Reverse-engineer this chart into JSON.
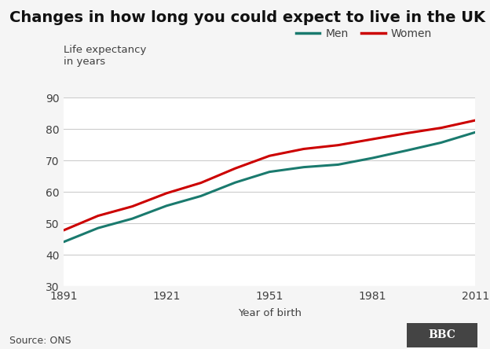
{
  "title": "Changes in how long you could expect to live in the UK",
  "ylabel_line1": "Life expectancy",
  "ylabel_line2": "in years",
  "xlabel": "Year of birth",
  "source": "Source: ONS",
  "bbc_text": "BBC",
  "xlim": [
    1891,
    2011
  ],
  "ylim": [
    30,
    90
  ],
  "yticks": [
    30,
    40,
    50,
    60,
    70,
    80,
    90
  ],
  "xticks": [
    1891,
    1921,
    1951,
    1981,
    2011
  ],
  "men_color": "#1a7a6e",
  "women_color": "#cc0000",
  "background_color": "#f5f5f5",
  "men_x": [
    1891,
    1901,
    1911,
    1921,
    1931,
    1941,
    1951,
    1961,
    1971,
    1981,
    1991,
    2001,
    2011
  ],
  "men_y": [
    44.1,
    48.5,
    51.5,
    55.6,
    58.7,
    63.0,
    66.4,
    67.9,
    68.7,
    70.8,
    73.2,
    75.7,
    79.0
  ],
  "women_x": [
    1891,
    1901,
    1911,
    1921,
    1931,
    1941,
    1951,
    1961,
    1971,
    1981,
    1991,
    2001,
    2011
  ],
  "women_y": [
    47.8,
    52.4,
    55.4,
    59.6,
    62.9,
    67.5,
    71.5,
    73.7,
    74.9,
    76.8,
    78.7,
    80.4,
    82.8
  ],
  "title_fontsize": 14,
  "axis_label_fontsize": 9.5,
  "tick_fontsize": 10,
  "legend_fontsize": 10,
  "source_fontsize": 9,
  "line_width": 2.2,
  "plot_bg_color": "#ffffff",
  "grid_color": "#cccccc",
  "text_color": "#404040",
  "bbc_bg_color": "#444444"
}
